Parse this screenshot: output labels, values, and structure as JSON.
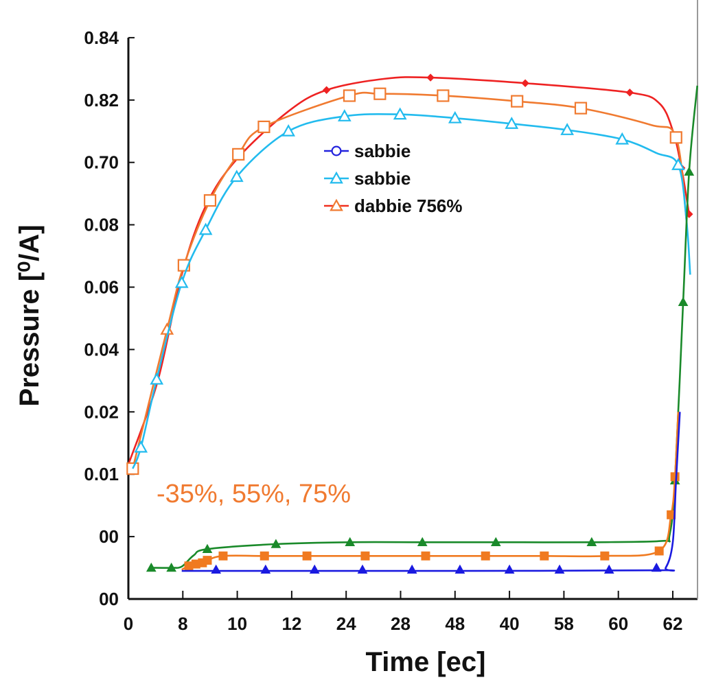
{
  "chart_data": {
    "type": "line",
    "title": "",
    "xlabel": "Time [ec]",
    "ylabel": "Pressure [⁰/A]",
    "x_tick_labels": [
      "0",
      "8",
      "10",
      "12",
      "24",
      "28",
      "48",
      "40",
      "58",
      "60",
      "62"
    ],
    "y_tick_labels": [
      "00",
      "00",
      "0.01",
      "0.02",
      "0.04",
      "0.06",
      "0.08",
      "0.70",
      "0.82",
      "0.84"
    ],
    "x_units": "tick position index (0 = first tick label, 10 = last tick label)",
    "y_units": "tick position index (0 = bottom tick label, 9 = top tick label)",
    "xlim": [
      0,
      10.45
    ],
    "ylim": [
      0,
      9
    ],
    "grid": false,
    "legend_placement": "upper-center",
    "legend": [
      {
        "label": "sabbie",
        "color": "#2222dd",
        "marker": "circle"
      },
      {
        "label": "sabbie",
        "color": "#22bbee",
        "marker": "triangle"
      },
      {
        "label": "dabbie 756%",
        "color": "#f03020",
        "marker": "triangle",
        "marker_color": "#f07a30"
      }
    ],
    "annotations": [
      {
        "text": "-35%, 55%, 75%",
        "color": "#f07a30"
      }
    ],
    "series": [
      {
        "color": "#ee2222",
        "marker": "diamond",
        "filled": true,
        "curve": [
          [
            0.01,
            2.18
          ],
          [
            0.54,
            3.5
          ],
          [
            0.98,
            5.2
          ],
          [
            1.42,
            6.3
          ],
          [
            1.99,
            7.05
          ],
          [
            2.94,
            7.82
          ],
          [
            3.64,
            8.16
          ],
          [
            4.7,
            8.34
          ],
          [
            5.55,
            8.36
          ],
          [
            7.29,
            8.27
          ],
          [
            9.21,
            8.12
          ],
          [
            9.75,
            7.95
          ],
          [
            10.0,
            7.51
          ],
          [
            10.16,
            6.91
          ],
          [
            10.3,
            6.17
          ]
        ],
        "markers": [
          [
            3.64,
            8.16
          ],
          [
            5.55,
            8.36
          ],
          [
            7.29,
            8.27
          ],
          [
            9.21,
            8.12
          ],
          [
            10.16,
            6.91
          ],
          [
            10.3,
            6.17
          ]
        ]
      },
      {
        "color": "#f07a30",
        "marker": "square",
        "filled": false,
        "curve": [
          [
            0.08,
            2.09
          ],
          [
            0.71,
            4.32
          ],
          [
            1.02,
            5.35
          ],
          [
            1.5,
            6.39
          ],
          [
            2.02,
            7.13
          ],
          [
            2.49,
            7.57
          ],
          [
            4.06,
            8.07
          ],
          [
            4.62,
            8.1
          ],
          [
            5.78,
            8.07
          ],
          [
            7.14,
            7.98
          ],
          [
            8.31,
            7.87
          ],
          [
            9.6,
            7.6
          ],
          [
            10.06,
            7.4
          ],
          [
            10.25,
            6.08
          ]
        ],
        "markers": [
          [
            0.08,
            2.09
          ],
          [
            1.02,
            5.35
          ],
          [
            1.5,
            6.39
          ],
          [
            2.02,
            7.13
          ],
          [
            2.49,
            7.57
          ],
          [
            4.06,
            8.07
          ],
          [
            4.62,
            8.1
          ],
          [
            5.78,
            8.07
          ],
          [
            7.14,
            7.98
          ],
          [
            8.31,
            7.87
          ],
          [
            10.06,
            7.4
          ]
        ],
        "extra_markers": [
          {
            "shape": "triangle",
            "point": [
              0.71,
              4.32
            ]
          }
        ]
      },
      {
        "color": "#22bbee",
        "marker": "triangle",
        "filled": false,
        "curve": [
          [
            0.08,
            2.09
          ],
          [
            0.23,
            2.43
          ],
          [
            0.52,
            3.52
          ],
          [
            0.98,
            5.07
          ],
          [
            1.42,
            5.92
          ],
          [
            1.99,
            6.77
          ],
          [
            2.94,
            7.5
          ],
          [
            3.97,
            7.74
          ],
          [
            4.99,
            7.77
          ],
          [
            6.0,
            7.71
          ],
          [
            7.04,
            7.62
          ],
          [
            8.06,
            7.52
          ],
          [
            9.07,
            7.37
          ],
          [
            9.7,
            7.15
          ],
          [
            10.1,
            6.96
          ],
          [
            10.25,
            6.08
          ],
          [
            10.32,
            5.2
          ]
        ],
        "markers": [
          [
            0.23,
            2.43
          ],
          [
            0.52,
            3.52
          ],
          [
            0.98,
            5.07
          ],
          [
            1.42,
            5.92
          ],
          [
            1.99,
            6.77
          ],
          [
            2.94,
            7.5
          ],
          [
            3.97,
            7.74
          ],
          [
            4.99,
            7.77
          ],
          [
            6.0,
            7.71
          ],
          [
            7.04,
            7.62
          ],
          [
            8.06,
            7.52
          ],
          [
            9.07,
            7.37
          ],
          [
            10.1,
            6.96
          ]
        ]
      },
      {
        "color": "#1a8a2a",
        "marker": "triangle",
        "filled": true,
        "curve": [
          [
            0.42,
            0.5
          ],
          [
            0.79,
            0.5
          ],
          [
            0.98,
            0.52
          ],
          [
            1.2,
            0.7
          ],
          [
            1.45,
            0.8
          ],
          [
            2.71,
            0.88
          ],
          [
            4.07,
            0.91
          ],
          [
            5.4,
            0.91
          ],
          [
            6.75,
            0.91
          ],
          [
            8.51,
            0.91
          ],
          [
            9.8,
            0.93
          ],
          [
            9.94,
            1.02
          ],
          [
            10.04,
            1.9
          ],
          [
            10.19,
            4.76
          ],
          [
            10.3,
            6.85
          ],
          [
            10.45,
            8.23
          ]
        ],
        "markers": [
          [
            0.42,
            0.5
          ],
          [
            0.79,
            0.5
          ],
          [
            1.45,
            0.8
          ],
          [
            2.71,
            0.88
          ],
          [
            4.07,
            0.91
          ],
          [
            5.4,
            0.91
          ],
          [
            6.75,
            0.91
          ],
          [
            8.51,
            0.91
          ],
          [
            10.04,
            1.9
          ],
          [
            10.19,
            4.76
          ],
          [
            10.3,
            6.85
          ]
        ]
      },
      {
        "color": "#f07a20",
        "marker": "square",
        "filled": true,
        "curve": [
          [
            0.98,
            0.47
          ],
          [
            1.11,
            0.53
          ],
          [
            1.24,
            0.56
          ],
          [
            1.36,
            0.58
          ],
          [
            1.45,
            0.62
          ],
          [
            1.74,
            0.69
          ],
          [
            2.5,
            0.69
          ],
          [
            3.28,
            0.69
          ],
          [
            4.35,
            0.69
          ],
          [
            5.46,
            0.69
          ],
          [
            6.56,
            0.69
          ],
          [
            7.64,
            0.69
          ],
          [
            8.75,
            0.69
          ],
          [
            9.75,
            0.77
          ],
          [
            9.97,
            1.35
          ],
          [
            10.04,
            1.96
          ],
          [
            10.1,
            3.0
          ]
        ],
        "markers": [
          [
            1.11,
            0.53
          ],
          [
            1.24,
            0.56
          ],
          [
            1.36,
            0.58
          ],
          [
            1.45,
            0.62
          ],
          [
            1.74,
            0.69
          ],
          [
            2.5,
            0.69
          ],
          [
            3.28,
            0.69
          ],
          [
            4.35,
            0.69
          ],
          [
            5.46,
            0.69
          ],
          [
            6.56,
            0.69
          ],
          [
            7.64,
            0.69
          ],
          [
            8.75,
            0.69
          ],
          [
            9.75,
            0.77
          ],
          [
            9.97,
            1.35
          ],
          [
            10.04,
            1.96
          ]
        ]
      },
      {
        "color": "#1a1ae0",
        "marker": "triangle",
        "filled": true,
        "curve": [
          [
            0.98,
            0.45
          ],
          [
            3.0,
            0.45
          ],
          [
            6.0,
            0.45
          ],
          [
            9.7,
            0.46
          ],
          [
            9.87,
            0.5
          ],
          [
            10.0,
            0.91
          ],
          [
            10.06,
            1.9
          ],
          [
            10.13,
            3.0
          ]
        ],
        "markers": [
          [
            1.61,
            0.47
          ],
          [
            2.52,
            0.47
          ],
          [
            3.42,
            0.47
          ],
          [
            4.3,
            0.47
          ],
          [
            5.21,
            0.47
          ],
          [
            6.09,
            0.47
          ],
          [
            7.0,
            0.47
          ],
          [
            7.92,
            0.47
          ],
          [
            8.83,
            0.47
          ],
          [
            9.7,
            0.5
          ]
        ]
      }
    ]
  }
}
